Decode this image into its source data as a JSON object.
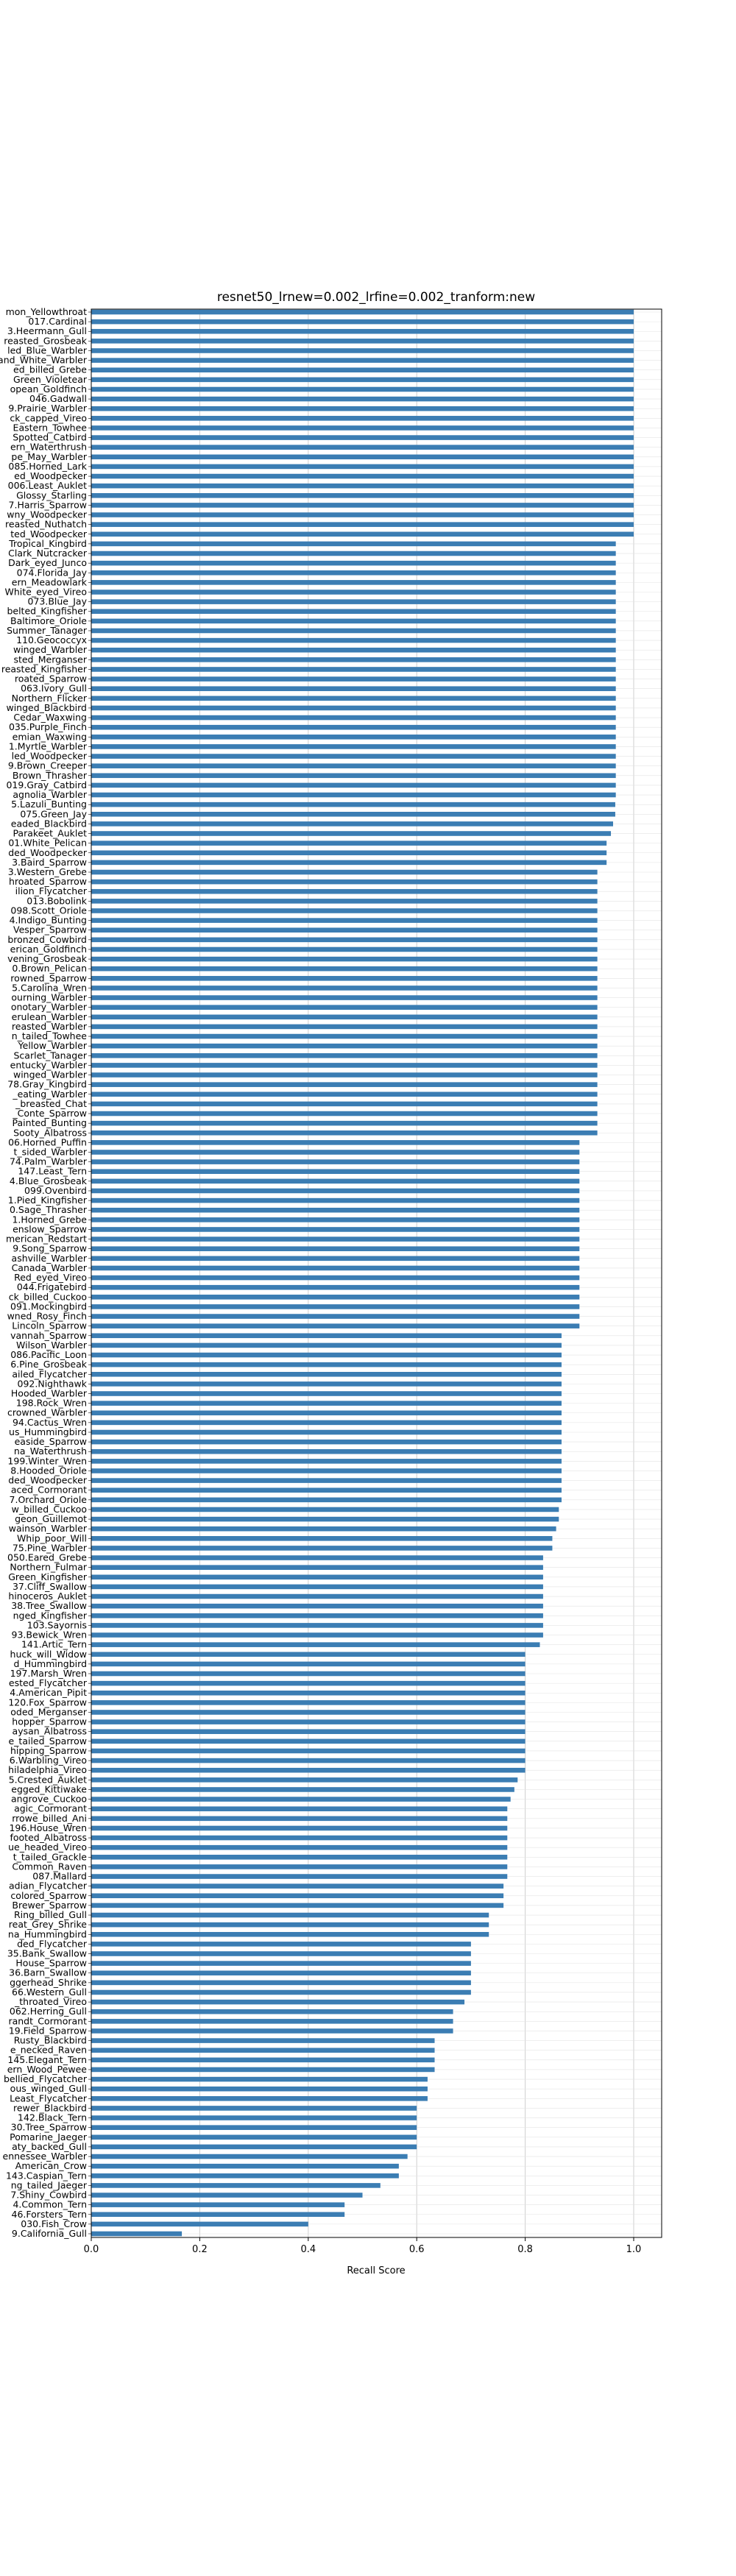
{
  "chart_data": {
    "type": "bar",
    "orientation": "horizontal",
    "title": "resnet50_lrnew=0.002_lrfine=0.002_tranform:new",
    "xlabel": "Recall Score",
    "ylabel": "",
    "xlim": [
      0,
      1.05
    ],
    "xticks": [
      0.0,
      0.2,
      0.4,
      0.6,
      0.8,
      1.0
    ],
    "xtick_labels": [
      "0.0",
      "0.2",
      "0.4",
      "0.6",
      "0.8",
      "1.0"
    ],
    "grid": true,
    "bar_color": "#3b7db3",
    "categories": [
      "mon_Yellowthroat",
      "017.Cardinal",
      "3.Heermann_Gull",
      "reasted_Grosbeak",
      "led_Blue_Warbler",
      "Black_and_White_Warbler",
      "ed_billed_Grebe",
      "Green_Violetear",
      "opean_Goldfinch",
      "046.Gadwall",
      "9.Prairie_Warbler",
      "ck_capped_Vireo",
      "Eastern_Towhee",
      "Spotted_Catbird",
      "ern_Waterthrush",
      "pe_May_Warbler",
      "085.Horned_Lark",
      "ed_Woodpecker",
      "006.Least_Auklet",
      "Glossy_Starling",
      "7.Harris_Sparrow",
      "wny_Woodpecker",
      "reasted_Nuthatch",
      "ted_Woodpecker",
      "Tropical_Kingbird",
      "Clark_Nutcracker",
      "Dark_eyed_Junco",
      "074.Florida_Jay",
      "ern_Meadowlark",
      "White_eyed_Vireo",
      "073.Blue_Jay",
      "belted_Kingfisher",
      "Baltimore_Oriole",
      "Summer_Tanager",
      "110.Geococcyx",
      "winged_Warbler",
      "sted_Merganser",
      "reasted_Kingfisher",
      "roated_Sparrow",
      "063.Ivory_Gull",
      "Northern_Flicker",
      "winged_Blackbird",
      "Cedar_Waxwing",
      "035.Purple_Finch",
      "emian_Waxwing",
      "1.Myrtle_Warbler",
      "led_Woodpecker",
      "9.Brown_Creeper",
      "Brown_Thrasher",
      "019.Gray_Catbird",
      "agnolia_Warbler",
      "5.Lazuli_Bunting",
      "075.Green_Jay",
      "eaded_Blackbird",
      "Parakeet_Auklet",
      "01.White_Pelican",
      "ded_Woodpecker",
      "3.Baird_Sparrow",
      "3.Western_Grebe",
      "hroated_Sparrow",
      "ilion_Flycatcher",
      "013.Bobolink",
      "098.Scott_Oriole",
      "4.Indigo_Bunting",
      "Vesper_Sparrow",
      "bronzed_Cowbird",
      "erican_Goldfinch",
      "vening_Grosbeak",
      "0.Brown_Pelican",
      "rowned_Sparrow",
      "5.Carolina_Wren",
      "ourning_Warbler",
      "onotary_Warbler",
      "erulean_Warbler",
      "reasted_Warbler",
      "n_tailed_Towhee",
      "Yellow_Warbler",
      "Scarlet_Tanager",
      "entucky_Warbler",
      "winged_Warbler",
      "78.Gray_Kingbird",
      "_eating_Warbler",
      "_breasted_Chat",
      "_Conte_Sparrow",
      "Painted_Bunting",
      "Sooty_Albatross",
      "06.Horned_Puffin",
      "t_sided_Warbler",
      "74.Palm_Warbler",
      "147.Least_Tern",
      "4.Blue_Grosbeak",
      "099.Ovenbird",
      "1.Pied_Kingfisher",
      "0.Sage_Thrasher",
      "1.Horned_Grebe",
      "enslow_Sparrow",
      "merican_Redstart",
      "9.Song_Sparrow",
      "ashville_Warbler",
      "Canada_Warbler",
      "Red_eyed_Vireo",
      "044.Frigatebird",
      "ck_billed_Cuckoo",
      "091.Mockingbird",
      "wned_Rosy_Finch",
      "Lincoln_Sparrow",
      "vannah_Sparrow",
      "Wilson_Warbler",
      "086.Pacific_Loon",
      "6.Pine_Grosbeak",
      "ailed_Flycatcher",
      "092.Nighthawk",
      "Hooded_Warbler",
      "198.Rock_Wren",
      "crowned_Warbler",
      "94.Cactus_Wren",
      "us_Hummingbird",
      "easide_Sparrow",
      "na_Waterthrush",
      "199.Winter_Wren",
      "8.Hooded_Oriole",
      "ded_Woodpecker",
      "aced_Cormorant",
      "7.Orchard_Oriole",
      "w_billed_Cuckoo",
      "geon_Guillemot",
      "wainson_Warbler",
      "Whip_poor_Will",
      "75.Pine_Warbler",
      "050.Eared_Grebe",
      "Northern_Fulmar",
      "Green_Kingfisher",
      "37.Cliff_Swallow",
      "hinoceros_Auklet",
      "38.Tree_Swallow",
      "nged_Kingfisher",
      "103.Sayornis",
      "93.Bewick_Wren",
      "141.Artic_Tern",
      "huck_will_Widow",
      "d_Hummingbird",
      "197.Marsh_Wren",
      "ested_Flycatcher",
      "4.American_Pipit",
      "120.Fox_Sparrow",
      "oded_Merganser",
      "hopper_Sparrow",
      "aysan_Albatross",
      "e_tailed_Sparrow",
      "hipping_Sparrow",
      "6.Warbling_Vireo",
      "hiladelphia_Vireo",
      "5.Crested_Auklet",
      "egged_Kittiwake",
      "angrove_Cuckoo",
      "agic_Cormorant",
      "rrowe_billed_Ani",
      "196.House_Wren",
      "footed_Albatross",
      "ue_headed_Vireo",
      "t_tailed_Grackle",
      "Common_Raven",
      "087.Mallard",
      "adian_Flycatcher",
      "colored_Sparrow",
      "Brewer_Sparrow",
      "Ring_billed_Gull",
      "reat_Grey_Shrike",
      "na_Hummingbird",
      "ded_Flycatcher",
      "35.Bank_Swallow",
      "House_Sparrow",
      "36.Barn_Swallow",
      "ggerhead_Shrike",
      "66.Western_Gull",
      "_throated_Vireo",
      "062.Herring_Gull",
      "randt_Cormorant",
      "19.Field_Sparrow",
      "Rusty_Blackbird",
      "e_necked_Raven",
      "145.Elegant_Tern",
      "ern_Wood_Pewee",
      "bellied_Flycatcher",
      "ous_winged_Gull",
      "Least_Flycatcher",
      "rewer_Blackbird",
      "142.Black_Tern",
      "30.Tree_Sparrow",
      "Pomarine_Jaeger",
      "aty_backed_Gull",
      "ennessee_Warbler",
      "American_Crow",
      "143.Caspian_Tern",
      "ng_tailed_Jaeger",
      "7.Shiny_Cowbird",
      "4.Common_Tern",
      "46.Forsters_Tern",
      "030.Fish_Crow",
      "9.California_Gull"
    ],
    "values": [
      1.0,
      1.0,
      1.0,
      1.0,
      1.0,
      1.0,
      1.0,
      1.0,
      1.0,
      1.0,
      1.0,
      1.0,
      1.0,
      1.0,
      1.0,
      1.0,
      1.0,
      1.0,
      1.0,
      1.0,
      1.0,
      1.0,
      1.0,
      1.0,
      0.967,
      0.967,
      0.967,
      0.967,
      0.967,
      0.967,
      0.967,
      0.967,
      0.967,
      0.967,
      0.967,
      0.967,
      0.967,
      0.967,
      0.967,
      0.967,
      0.967,
      0.967,
      0.967,
      0.967,
      0.967,
      0.967,
      0.967,
      0.967,
      0.967,
      0.967,
      0.967,
      0.966,
      0.966,
      0.962,
      0.958,
      0.95,
      0.95,
      0.95,
      0.933,
      0.933,
      0.933,
      0.933,
      0.933,
      0.933,
      0.933,
      0.933,
      0.933,
      0.933,
      0.933,
      0.933,
      0.933,
      0.933,
      0.933,
      0.933,
      0.933,
      0.933,
      0.933,
      0.933,
      0.933,
      0.933,
      0.933,
      0.933,
      0.933,
      0.933,
      0.933,
      0.933,
      0.9,
      0.9,
      0.9,
      0.9,
      0.9,
      0.9,
      0.9,
      0.9,
      0.9,
      0.9,
      0.9,
      0.9,
      0.9,
      0.9,
      0.9,
      0.9,
      0.9,
      0.9,
      0.9,
      0.9,
      0.867,
      0.867,
      0.867,
      0.867,
      0.867,
      0.867,
      0.867,
      0.867,
      0.867,
      0.867,
      0.867,
      0.867,
      0.867,
      0.867,
      0.867,
      0.867,
      0.867,
      0.867,
      0.862,
      0.862,
      0.857,
      0.85,
      0.85,
      0.833,
      0.833,
      0.833,
      0.833,
      0.833,
      0.833,
      0.833,
      0.833,
      0.833,
      0.827,
      0.8,
      0.8,
      0.8,
      0.8,
      0.8,
      0.8,
      0.8,
      0.8,
      0.8,
      0.8,
      0.8,
      0.8,
      0.8,
      0.786,
      0.78,
      0.773,
      0.767,
      0.767,
      0.767,
      0.767,
      0.767,
      0.767,
      0.767,
      0.767,
      0.76,
      0.76,
      0.76,
      0.733,
      0.733,
      0.733,
      0.7,
      0.7,
      0.7,
      0.7,
      0.7,
      0.7,
      0.688,
      0.667,
      0.667,
      0.667,
      0.633,
      0.633,
      0.633,
      0.633,
      0.62,
      0.62,
      0.62,
      0.6,
      0.6,
      0.6,
      0.6,
      0.6,
      0.583,
      0.567,
      0.567,
      0.533,
      0.5,
      0.467,
      0.467,
      0.4,
      0.167
    ]
  }
}
